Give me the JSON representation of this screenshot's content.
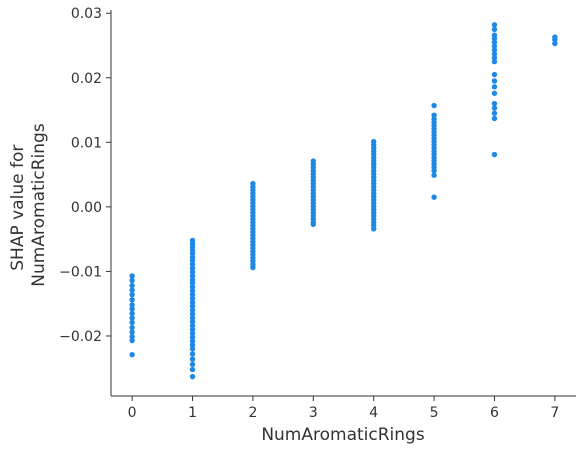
{
  "chart_data": {
    "type": "scatter",
    "title": "",
    "xlabel": "NumAromaticRings",
    "ylabel_lines": [
      "SHAP value for",
      "NumAromaticRings"
    ],
    "xlim": [
      -0.35,
      7.35
    ],
    "ylim": [
      -0.0293,
      0.0305
    ],
    "xticks": [
      0,
      1,
      2,
      3,
      4,
      5,
      6,
      7
    ],
    "xtick_labels": [
      "0",
      "1",
      "2",
      "3",
      "4",
      "5",
      "6",
      "7"
    ],
    "yticks": [
      -0.02,
      -0.01,
      0.0,
      0.01,
      0.02,
      0.03
    ],
    "ytick_labels": [
      "−0.02",
      "−0.01",
      "0.00",
      "0.01",
      "0.02",
      "0.03"
    ],
    "grid": false,
    "legend": "none",
    "color": "#1E88E5",
    "spines": "left-bottom",
    "points": [
      {
        "x": 0,
        "y": -0.0107
      },
      {
        "x": 0,
        "y": -0.0114
      },
      {
        "x": 0,
        "y": -0.0122
      },
      {
        "x": 0,
        "y": -0.0129
      },
      {
        "x": 0,
        "y": -0.0136
      },
      {
        "x": 0,
        "y": -0.0144
      },
      {
        "x": 0,
        "y": -0.0152
      },
      {
        "x": 0,
        "y": -0.0158
      },
      {
        "x": 0,
        "y": -0.0165
      },
      {
        "x": 0,
        "y": -0.0172
      },
      {
        "x": 0,
        "y": -0.0179
      },
      {
        "x": 0,
        "y": -0.0187
      },
      {
        "x": 0,
        "y": -0.0194
      },
      {
        "x": 0,
        "y": -0.0201
      },
      {
        "x": 0,
        "y": -0.0207
      },
      {
        "x": 0,
        "y": -0.0229
      },
      {
        "x": 1,
        "y": -0.0052
      },
      {
        "x": 1,
        "y": -0.0057
      },
      {
        "x": 1,
        "y": -0.0062
      },
      {
        "x": 1,
        "y": -0.0067
      },
      {
        "x": 1,
        "y": -0.0072
      },
      {
        "x": 1,
        "y": -0.0078
      },
      {
        "x": 1,
        "y": -0.0083
      },
      {
        "x": 1,
        "y": -0.0089
      },
      {
        "x": 1,
        "y": -0.0095
      },
      {
        "x": 1,
        "y": -0.0101
      },
      {
        "x": 1,
        "y": -0.0107
      },
      {
        "x": 1,
        "y": -0.0113
      },
      {
        "x": 1,
        "y": -0.0118
      },
      {
        "x": 1,
        "y": -0.0124
      },
      {
        "x": 1,
        "y": -0.013
      },
      {
        "x": 1,
        "y": -0.0136
      },
      {
        "x": 1,
        "y": -0.0142
      },
      {
        "x": 1,
        "y": -0.0148
      },
      {
        "x": 1,
        "y": -0.0154
      },
      {
        "x": 1,
        "y": -0.016
      },
      {
        "x": 1,
        "y": -0.0166
      },
      {
        "x": 1,
        "y": -0.0172
      },
      {
        "x": 1,
        "y": -0.0178
      },
      {
        "x": 1,
        "y": -0.0184
      },
      {
        "x": 1,
        "y": -0.019
      },
      {
        "x": 1,
        "y": -0.0196
      },
      {
        "x": 1,
        "y": -0.0202
      },
      {
        "x": 1,
        "y": -0.0208
      },
      {
        "x": 1,
        "y": -0.0214
      },
      {
        "x": 1,
        "y": -0.022
      },
      {
        "x": 1,
        "y": -0.0228
      },
      {
        "x": 1,
        "y": -0.0236
      },
      {
        "x": 1,
        "y": -0.0244
      },
      {
        "x": 1,
        "y": -0.0252
      },
      {
        "x": 1,
        "y": -0.0263
      },
      {
        "x": 2,
        "y": 0.0036
      },
      {
        "x": 2,
        "y": 0.0031
      },
      {
        "x": 2,
        "y": 0.0026
      },
      {
        "x": 2,
        "y": 0.0021
      },
      {
        "x": 2,
        "y": 0.0016
      },
      {
        "x": 2,
        "y": 0.0011
      },
      {
        "x": 2,
        "y": 0.0006
      },
      {
        "x": 2,
        "y": 0.0001
      },
      {
        "x": 2,
        "y": -0.0004
      },
      {
        "x": 2,
        "y": -0.0009
      },
      {
        "x": 2,
        "y": -0.0014
      },
      {
        "x": 2,
        "y": -0.0019
      },
      {
        "x": 2,
        "y": -0.0024
      },
      {
        "x": 2,
        "y": -0.0029
      },
      {
        "x": 2,
        "y": -0.0034
      },
      {
        "x": 2,
        "y": -0.0039
      },
      {
        "x": 2,
        "y": -0.0044
      },
      {
        "x": 2,
        "y": -0.0049
      },
      {
        "x": 2,
        "y": -0.0054
      },
      {
        "x": 2,
        "y": -0.0059
      },
      {
        "x": 2,
        "y": -0.0064
      },
      {
        "x": 2,
        "y": -0.0069
      },
      {
        "x": 2,
        "y": -0.0074
      },
      {
        "x": 2,
        "y": -0.0079
      },
      {
        "x": 2,
        "y": -0.0084
      },
      {
        "x": 2,
        "y": -0.0089
      },
      {
        "x": 2,
        "y": -0.0094
      },
      {
        "x": 3,
        "y": 0.0071
      },
      {
        "x": 3,
        "y": 0.0066
      },
      {
        "x": 3,
        "y": 0.0061
      },
      {
        "x": 3,
        "y": 0.0056
      },
      {
        "x": 3,
        "y": 0.0051
      },
      {
        "x": 3,
        "y": 0.0046
      },
      {
        "x": 3,
        "y": 0.0041
      },
      {
        "x": 3,
        "y": 0.0036
      },
      {
        "x": 3,
        "y": 0.0031
      },
      {
        "x": 3,
        "y": 0.0026
      },
      {
        "x": 3,
        "y": 0.0021
      },
      {
        "x": 3,
        "y": 0.0016
      },
      {
        "x": 3,
        "y": 0.0011
      },
      {
        "x": 3,
        "y": 0.0006
      },
      {
        "x": 3,
        "y": 0.0001
      },
      {
        "x": 3,
        "y": -0.0004
      },
      {
        "x": 3,
        "y": -0.0009
      },
      {
        "x": 3,
        "y": -0.0014
      },
      {
        "x": 3,
        "y": -0.0019
      },
      {
        "x": 3,
        "y": -0.0024
      },
      {
        "x": 3,
        "y": -0.0027
      },
      {
        "x": 4,
        "y": 0.0101
      },
      {
        "x": 4,
        "y": 0.0096
      },
      {
        "x": 4,
        "y": 0.0091
      },
      {
        "x": 4,
        "y": 0.0086
      },
      {
        "x": 4,
        "y": 0.0081
      },
      {
        "x": 4,
        "y": 0.0076
      },
      {
        "x": 4,
        "y": 0.0071
      },
      {
        "x": 4,
        "y": 0.0066
      },
      {
        "x": 4,
        "y": 0.0061
      },
      {
        "x": 4,
        "y": 0.0056
      },
      {
        "x": 4,
        "y": 0.0051
      },
      {
        "x": 4,
        "y": 0.0046
      },
      {
        "x": 4,
        "y": 0.0041
      },
      {
        "x": 4,
        "y": 0.0036
      },
      {
        "x": 4,
        "y": 0.0031
      },
      {
        "x": 4,
        "y": 0.0026
      },
      {
        "x": 4,
        "y": 0.0021
      },
      {
        "x": 4,
        "y": 0.0016
      },
      {
        "x": 4,
        "y": 0.0011
      },
      {
        "x": 4,
        "y": 0.0006
      },
      {
        "x": 4,
        "y": 0.0001
      },
      {
        "x": 4,
        "y": -0.0004
      },
      {
        "x": 4,
        "y": -0.0009
      },
      {
        "x": 4,
        "y": -0.0014
      },
      {
        "x": 4,
        "y": -0.0019
      },
      {
        "x": 4,
        "y": -0.0024
      },
      {
        "x": 4,
        "y": -0.0029
      },
      {
        "x": 4,
        "y": -0.0034
      },
      {
        "x": 5,
        "y": 0.0157
      },
      {
        "x": 5,
        "y": 0.0142
      },
      {
        "x": 5,
        "y": 0.0136
      },
      {
        "x": 5,
        "y": 0.0131
      },
      {
        "x": 5,
        "y": 0.0126
      },
      {
        "x": 5,
        "y": 0.0121
      },
      {
        "x": 5,
        "y": 0.0116
      },
      {
        "x": 5,
        "y": 0.0111
      },
      {
        "x": 5,
        "y": 0.0106
      },
      {
        "x": 5,
        "y": 0.0101
      },
      {
        "x": 5,
        "y": 0.0096
      },
      {
        "x": 5,
        "y": 0.0091
      },
      {
        "x": 5,
        "y": 0.0086
      },
      {
        "x": 5,
        "y": 0.0081
      },
      {
        "x": 5,
        "y": 0.0076
      },
      {
        "x": 5,
        "y": 0.0071
      },
      {
        "x": 5,
        "y": 0.0066
      },
      {
        "x": 5,
        "y": 0.0061
      },
      {
        "x": 5,
        "y": 0.0056
      },
      {
        "x": 5,
        "y": 0.0049
      },
      {
        "x": 5,
        "y": 0.0015
      },
      {
        "x": 6,
        "y": 0.0282
      },
      {
        "x": 6,
        "y": 0.0275
      },
      {
        "x": 6,
        "y": 0.0266
      },
      {
        "x": 6,
        "y": 0.0261
      },
      {
        "x": 6,
        "y": 0.0255
      },
      {
        "x": 6,
        "y": 0.0249
      },
      {
        "x": 6,
        "y": 0.0243
      },
      {
        "x": 6,
        "y": 0.0237
      },
      {
        "x": 6,
        "y": 0.0231
      },
      {
        "x": 6,
        "y": 0.0225
      },
      {
        "x": 6,
        "y": 0.0205
      },
      {
        "x": 6,
        "y": 0.0195
      },
      {
        "x": 6,
        "y": 0.0186
      },
      {
        "x": 6,
        "y": 0.0176
      },
      {
        "x": 6,
        "y": 0.016
      },
      {
        "x": 6,
        "y": 0.0153
      },
      {
        "x": 6,
        "y": 0.0145
      },
      {
        "x": 6,
        "y": 0.0137
      },
      {
        "x": 6,
        "y": 0.0081
      },
      {
        "x": 7,
        "y": 0.0263
      },
      {
        "x": 7,
        "y": 0.0259
      },
      {
        "x": 7,
        "y": 0.0253
      }
    ]
  }
}
